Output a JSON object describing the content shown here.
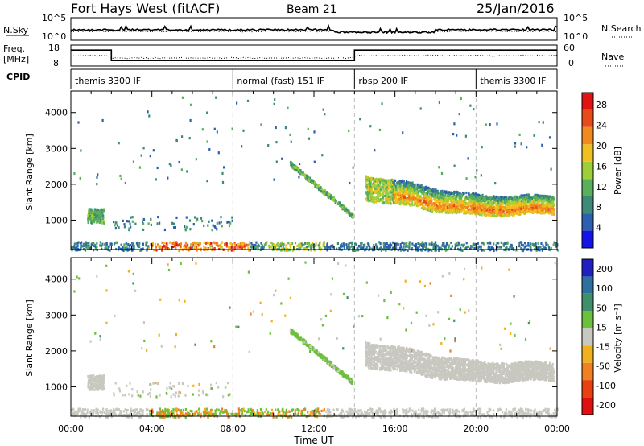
{
  "header": {
    "station": "Fort Hays West (fitACF)",
    "beam": "Beam 21",
    "date": "25/Jan/2016"
  },
  "top_strip": {
    "left_label": "N.Sky",
    "left_ticks": [
      "10^5",
      "10^0"
    ],
    "right_label": "N.Search",
    "right_ticks": [
      "10^5",
      "10^0"
    ]
  },
  "freq_strip": {
    "left_label_1": "Freq.",
    "left_label_2": "[MHz]",
    "left_ticks": [
      "18",
      "8"
    ],
    "right_label": "Nave",
    "right_ticks": [
      "60",
      "0"
    ],
    "freq_steps": [
      {
        "from": 0,
        "to": 2,
        "mhz": 15.6
      },
      {
        "from": 2,
        "to": 14,
        "mhz": 10.6
      },
      {
        "from": 14,
        "to": 24,
        "mhz": 15.6
      }
    ]
  },
  "cpid": {
    "label": "CPID",
    "segments": [
      {
        "start": 0,
        "label": "themis 3300 IF"
      },
      {
        "start": 8,
        "label": "normal (fast) 151 IF"
      },
      {
        "start": 14,
        "label": "rbsp 200 IF"
      },
      {
        "start": 20,
        "label": "themis 3300 IF"
      }
    ]
  },
  "time_axis": {
    "title": "Time UT",
    "ticks": [
      "00:00",
      "04:00",
      "08:00",
      "12:00",
      "16:00",
      "20:00",
      "00:00"
    ]
  },
  "power_panel": {
    "ylabel": "Slant Range [km]",
    "yticks": [
      "1000",
      "2000",
      "3000",
      "4000"
    ],
    "colorbar_label": "Power [dB]",
    "colorbar_ticks": [
      "4",
      "8",
      "12",
      "16",
      "20",
      "24",
      "28"
    ],
    "colors": [
      "#1414e8",
      "#2c5fb0",
      "#3e8a78",
      "#58b05a",
      "#9ccf3a",
      "#f0c020",
      "#f08a1e",
      "#e84a18",
      "#e01212"
    ]
  },
  "velocity_panel": {
    "ylabel": "Slant Range [km]",
    "yticks": [
      "1000",
      "2000",
      "3000",
      "4000"
    ],
    "colorbar_label": "Velocity [m s⁻¹]",
    "colorbar_ticks": [
      "200",
      "100",
      "50",
      "15",
      "-15",
      "-50",
      "-100",
      "-200"
    ],
    "colors": [
      "#2020c0",
      "#2e6fa0",
      "#3f8f6a",
      "#6cc03c",
      "#c8c8c0",
      "#f0b020",
      "#f08020",
      "#e84010",
      "#e01010"
    ]
  },
  "chart_data": {
    "type": "heatmap",
    "title": "Fort Hays West (fitACF)",
    "x": {
      "label": "Time UT",
      "range_hours": [
        0,
        24
      ],
      "ticks": [
        "00:00",
        "04:00",
        "08:00",
        "12:00",
        "16:00",
        "20:00",
        "00:00"
      ]
    },
    "y": {
      "label": "Slant Range [km]",
      "range": [
        180,
        4600
      ],
      "ticks": [
        1000,
        2000,
        3000,
        4000
      ]
    },
    "panels": [
      {
        "name": "Power [dB]",
        "scale": [
          0,
          30
        ],
        "ticks": [
          4,
          8,
          12,
          16,
          20,
          24,
          28
        ]
      },
      {
        "name": "Velocity [m s⁻¹]",
        "scale": [
          -250,
          250
        ],
        "ticks": [
          -200,
          -100,
          -50,
          -15,
          15,
          50,
          100,
          200
        ]
      }
    ],
    "scatter_regions": [
      {
        "t0": 0.8,
        "t1": 1.6,
        "r0": 950,
        "r1": 1350,
        "power": 9,
        "velocity": 0
      },
      {
        "t0": 0.2,
        "t1": 24,
        "r0": 180,
        "r1": 420,
        "power": 6,
        "velocity": 0
      },
      {
        "t0": 3.8,
        "t1": 8.8,
        "r0": 180,
        "r1": 380,
        "power": 22,
        "velocity": -40
      },
      {
        "t0": 9.8,
        "t1": 12.5,
        "r0": 180,
        "r1": 330,
        "power": 14,
        "velocity": -30
      },
      {
        "t0": 14.5,
        "t1": 23.8,
        "r0": 1150,
        "r1": 2300,
        "power": 20,
        "velocity": 0
      },
      {
        "t0": 10.8,
        "t1": 13.9,
        "r0": 1100,
        "r1": 2600,
        "power": 12,
        "velocity": 15
      }
    ]
  }
}
